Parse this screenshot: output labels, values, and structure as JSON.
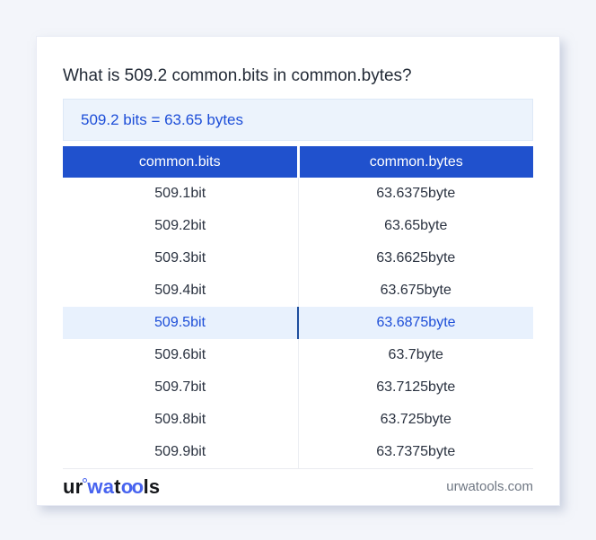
{
  "title": "What is 509.2 common.bits in common.bytes?",
  "result": "509.2 bits = 63.65 bytes",
  "table": {
    "columns": [
      "common.bits",
      "common.bytes"
    ],
    "rows": [
      {
        "bits": "509.1bit",
        "bytes": "63.6375byte",
        "highlighted": false
      },
      {
        "bits": "509.2bit",
        "bytes": "63.65byte",
        "highlighted": false
      },
      {
        "bits": "509.3bit",
        "bytes": "63.6625byte",
        "highlighted": false
      },
      {
        "bits": "509.4bit",
        "bytes": "63.675byte",
        "highlighted": false
      },
      {
        "bits": "509.5bit",
        "bytes": "63.6875byte",
        "highlighted": true
      },
      {
        "bits": "509.6bit",
        "bytes": "63.7byte",
        "highlighted": false
      },
      {
        "bits": "509.7bit",
        "bytes": "63.7125byte",
        "highlighted": false
      },
      {
        "bits": "509.8bit",
        "bytes": "63.725byte",
        "highlighted": false
      },
      {
        "bits": "509.9bit",
        "bytes": "63.7375byte",
        "highlighted": false
      }
    ]
  },
  "footer": {
    "logo_ur": "ur",
    "logo_wa": "wa",
    "logo_t": "t",
    "logo_oo": "oo",
    "logo_ls": "ls",
    "site": "urwatools.com"
  },
  "colors": {
    "page_background": "#f3f5fa",
    "header_blue": "#2051cd",
    "link_blue": "#1d4ed8",
    "highlight_row_bg": "#e8f1fd",
    "highlight_divider": "#1d4e9e",
    "result_box_bg": "#ecf3fc",
    "logo_accent": "#4763ef",
    "body_text": "#2a3240"
  }
}
